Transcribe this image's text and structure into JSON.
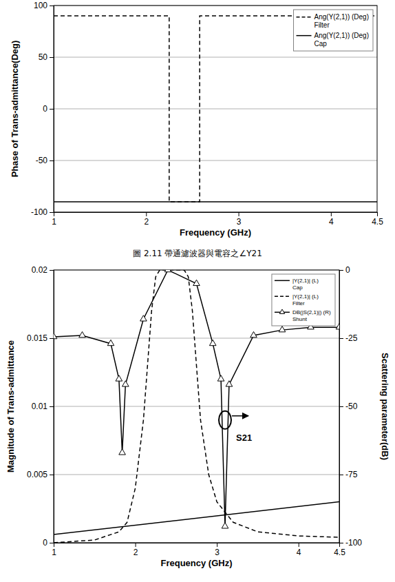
{
  "caption": "圖 2.11 帶通濾波器與電容之∠Y21",
  "chart_data": [
    {
      "type": "line",
      "x_label": "Frequency (GHz)",
      "y_label": "Phase of Trans-admittance(Deg)",
      "xlim": [
        1,
        4.5
      ],
      "xticks": [
        1,
        2,
        3,
        4,
        4.5
      ],
      "ylim": [
        -100,
        100
      ],
      "yticks": [
        -100,
        -50,
        0,
        50,
        100
      ],
      "grid": true,
      "legend": "top-right",
      "series": [
        {
          "name": "Ang(Y(2,1)) (Deg) Filter",
          "color": "#000000",
          "line_style": "dashed",
          "x": [
            1,
            2.25,
            2.25,
            2.58,
            2.58,
            4.5
          ],
          "values": [
            90,
            90,
            -90,
            -90,
            90,
            90
          ]
        },
        {
          "name": "Ang(Y(2,1)) (Deg) Cap",
          "color": "#000000",
          "line_style": "solid",
          "x": [
            1,
            4.5
          ],
          "values": [
            -90,
            -90
          ]
        }
      ]
    },
    {
      "type": "line",
      "x_label": "Frequency (GHz)",
      "y_label": "Magnitude of Trans-admittance",
      "y2_label": "Scattering parameter(dB)",
      "xlim": [
        1,
        4.5
      ],
      "xticks": [
        1,
        2,
        3,
        4,
        4.5
      ],
      "ylim": [
        0,
        0.02
      ],
      "yticks": [
        0,
        0.005,
        0.01,
        0.015,
        0.02
      ],
      "y2lim": [
        -100,
        0
      ],
      "y2ticks": [
        -100,
        -75,
        -50,
        -25,
        0
      ],
      "grid": true,
      "legend": "top-right",
      "annotation": "S21",
      "series": [
        {
          "name": "|Y(2,1)| (L) Cap",
          "color": "#000000",
          "line_style": "solid",
          "x": [
            1,
            4.5
          ],
          "values": [
            0.0006,
            0.003
          ]
        },
        {
          "name": "|Y(2,1)| (L) Filter",
          "color": "#000000",
          "line_style": "dashed",
          "x": [
            1,
            1.5,
            1.8,
            1.9,
            2.0,
            2.1,
            2.15,
            2.2,
            2.25,
            2.3,
            2.6,
            2.65,
            2.7,
            2.75,
            2.8,
            2.9,
            3.0,
            3.2,
            3.5,
            4.0,
            4.5
          ],
          "values": [
            0,
            0.0002,
            0.0008,
            0.0015,
            0.004,
            0.009,
            0.013,
            0.017,
            0.0195,
            0.02,
            0.02,
            0.0195,
            0.017,
            0.013,
            0.009,
            0.005,
            0.003,
            0.0015,
            0.0008,
            0.0005,
            0.0004
          ]
        },
        {
          "name": "DB(|S(2,1)|) (R) Shunt",
          "color": "#000000",
          "line_style": "solid",
          "marker": "triangle",
          "axis": "y2",
          "x": [
            1,
            1.35,
            1.7,
            1.8,
            1.84,
            1.88,
            2.1,
            2.4,
            2.75,
            2.95,
            3.05,
            3.1,
            3.15,
            3.45,
            3.8,
            4.15,
            4.5
          ],
          "values": [
            -24.5,
            -24,
            -27,
            -40,
            -67,
            -42,
            -18,
            0,
            -5,
            -27,
            -40,
            -94,
            -42,
            -24,
            -22,
            -21,
            -21
          ]
        }
      ]
    }
  ]
}
